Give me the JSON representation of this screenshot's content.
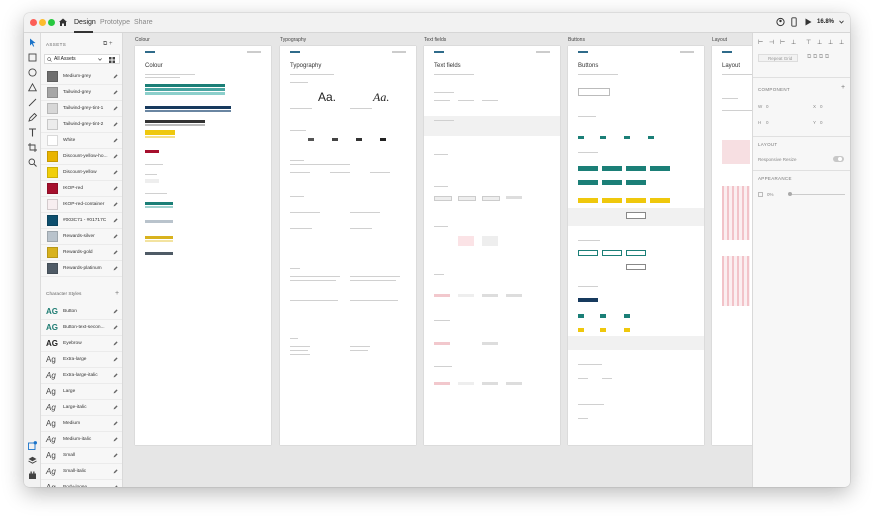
{
  "titlebar": {
    "tabs": [
      {
        "label": "Design",
        "active": true
      },
      {
        "label": "Prototype",
        "active": false
      },
      {
        "label": "Share",
        "active": false
      }
    ],
    "zoom": "16.8%"
  },
  "assets": {
    "title": "ASSETS",
    "filter": "All Assets",
    "colors": [
      {
        "label": "Medium-grey",
        "color": "#6f6f6f"
      },
      {
        "label": "Tailwind-grey",
        "color": "#a6a6a6"
      },
      {
        "label": "Tailwind-grey-tint-1",
        "color": "#d7d7d7"
      },
      {
        "label": "Tailwind-grey-tint-2",
        "color": "#ececec"
      },
      {
        "label": "White",
        "color": "#ffffff"
      },
      {
        "label": "Discount-yellow-ho...",
        "color": "#e9b400"
      },
      {
        "label": "Discount-yellow",
        "color": "#f1cf0a"
      },
      {
        "label": "IKOP-red",
        "color": "#a60f2d"
      },
      {
        "label": "IKOP-red-container",
        "color": "#f7eef0"
      },
      {
        "label": "#003C71 - #01717C",
        "color": "#0d4f6e"
      },
      {
        "label": "Rewards-silver",
        "color": "#b9c3cc"
      },
      {
        "label": "Rewards-gold",
        "color": "#d8b21e"
      },
      {
        "label": "Rewards-platinum",
        "color": "#4f5b66"
      }
    ],
    "character_styles_title": "Character Styles",
    "character_styles": [
      {
        "label": "Button",
        "glyph": "AG",
        "color": "#1e7d73",
        "bold": true
      },
      {
        "label": "Button-text-secon...",
        "glyph": "AG",
        "color": "#1e7d73",
        "bold": true
      },
      {
        "label": "Eyebrow",
        "glyph": "AG",
        "color": "#222222",
        "bold": true
      },
      {
        "label": "Extra-large",
        "glyph": "Ag",
        "color": "#444444",
        "italic": false
      },
      {
        "label": "Extra-large-italic",
        "glyph": "Ag",
        "color": "#444444",
        "italic": true
      },
      {
        "label": "Large",
        "glyph": "Ag",
        "color": "#444444",
        "italic": false
      },
      {
        "label": "Large-italic",
        "glyph": "Ag",
        "color": "#444444",
        "italic": true
      },
      {
        "label": "Medium",
        "glyph": "Ag",
        "color": "#444444",
        "italic": false
      },
      {
        "label": "Medium-italic",
        "glyph": "Ag",
        "color": "#444444",
        "italic": true
      },
      {
        "label": "Small",
        "glyph": "Ag",
        "color": "#444444",
        "italic": false
      },
      {
        "label": "Small-italic",
        "glyph": "Ag",
        "color": "#444444",
        "italic": true
      },
      {
        "label": "Body-loose",
        "glyph": "Ag",
        "color": "#444444",
        "italic": false
      }
    ]
  },
  "artboards": [
    {
      "label": "Colour",
      "heading": "Colour"
    },
    {
      "label": "Typography",
      "heading": "Typography"
    },
    {
      "label": "Text fields",
      "heading": "Text fields"
    },
    {
      "label": "Buttons",
      "heading": "Buttons"
    },
    {
      "label": "Layout",
      "heading": "Layout"
    }
  ],
  "typography_samples": [
    "Aa.",
    "Aa."
  ],
  "properties": {
    "repeat_grid": "Repeat Grid",
    "component_title": "COMPONENT",
    "w_label": "W",
    "w_value": "0",
    "h_label": "H",
    "h_value": "0",
    "x_label": "X",
    "x_value": "0",
    "y_label": "Y",
    "y_value": "0",
    "layout_title": "LAYOUT",
    "responsive_resize": "Responsive Resize",
    "appearance_title": "APPEARANCE",
    "opacity": "0%"
  },
  "colors": {
    "teal": "#1b7f77",
    "navy": "#173a5e",
    "yellow": "#efc80d",
    "red": "#a60f2d",
    "pink": "#f2c8cd"
  }
}
